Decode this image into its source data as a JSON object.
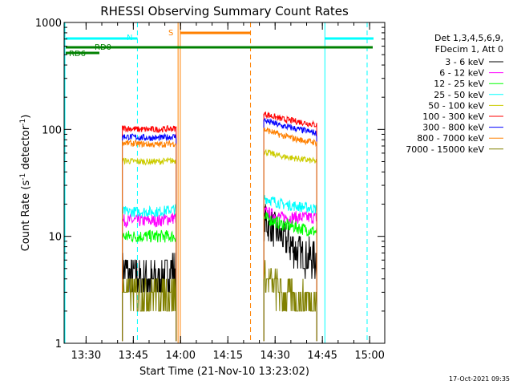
{
  "chart_data": {
    "type": "line",
    "title": "RHESSI Observing Summary Count Rates",
    "xlabel": "Start Time (21-Nov-10 13:23:02)",
    "ylabel_main": "Count Rate (s",
    "ylabel_sup1": "-1",
    "ylabel_mid": " detector",
    "ylabel_sup2": "-1",
    "ylabel_end": ")",
    "yscale": "log",
    "ylim": [
      1,
      1000
    ],
    "xlim_minutes": [
      13.383,
      15.067
    ],
    "x_ticks": [
      {
        "m": 810,
        "label": "13:30"
      },
      {
        "m": 825,
        "label": "13:45"
      },
      {
        "m": 840,
        "label": "14:00"
      },
      {
        "m": 855,
        "label": "14:15"
      },
      {
        "m": 870,
        "label": "14:30"
      },
      {
        "m": 885,
        "label": "14:45"
      },
      {
        "m": 900,
        "label": "15:00"
      }
    ],
    "y_ticks": [
      {
        "v": 1,
        "label": "1"
      },
      {
        "v": 10,
        "label": "10"
      },
      {
        "v": 100,
        "label": "100"
      },
      {
        "v": 1000,
        "label": "1000"
      }
    ],
    "legend_header": [
      "Det 1,3,4,5,6,9,",
      "FDecim 1, Att 0"
    ],
    "series": [
      {
        "name": "3 - 6 keV",
        "color": "#000000",
        "seg1": [
          5,
          4,
          4,
          5
        ],
        "seg2": [
          14,
          10,
          7,
          6
        ]
      },
      {
        "name": "6 - 12 keV",
        "color": "#ff00ff",
        "seg1": [
          14,
          14,
          14,
          15
        ],
        "seg2": [
          17,
          15,
          15,
          15
        ]
      },
      {
        "name": "12 - 25 keV",
        "color": "#00ff00",
        "seg1": [
          10,
          10,
          10,
          10
        ],
        "seg2": [
          15,
          13,
          12,
          11
        ]
      },
      {
        "name": "25 - 50 keV",
        "color": "#00ffff",
        "seg1": [
          17,
          17,
          17,
          18
        ],
        "seg2": [
          23,
          20,
          19,
          18
        ]
      },
      {
        "name": "50 - 100 keV",
        "color": "#cccc00",
        "seg1": [
          51,
          50,
          50,
          51
        ],
        "seg2": [
          62,
          56,
          53,
          50
        ]
      },
      {
        "name": "100 - 300 keV",
        "color": "#ff0000",
        "seg1": [
          103,
          100,
          100,
          102
        ],
        "seg2": [
          140,
          125,
          118,
          110
        ]
      },
      {
        "name": "300 - 800 keV",
        "color": "#0000ff",
        "seg1": [
          86,
          84,
          83,
          86
        ],
        "seg2": [
          122,
          108,
          100,
          92
        ]
      },
      {
        "name": "800 - 7000 keV",
        "color": "#ff8000",
        "seg1": [
          75,
          73,
          72,
          74
        ],
        "seg2": [
          100,
          88,
          80,
          75
        ]
      },
      {
        "name": "7000 - 15000 keV",
        "color": "#808000",
        "seg1": [
          3,
          3,
          3,
          3
        ],
        "seg2": [
          4,
          3,
          2.5,
          2.5
        ]
      }
    ],
    "annotations": {
      "N": "N",
      "S": "S",
      "RD0": "RD0",
      "RD6": "RD6"
    },
    "timestamp": "17-Oct-2021 09:35"
  }
}
